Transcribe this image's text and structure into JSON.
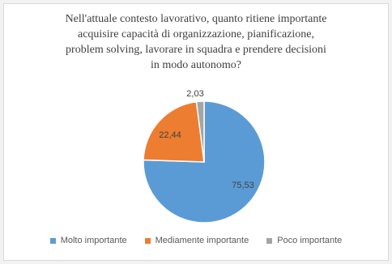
{
  "chart_data": {
    "type": "pie",
    "title_lines": [
      "Nell'attuale contesto lavorativo, quanto ritiene importante",
      "acquisire capacità di organizzazione, pianificazione,",
      "problem solving, lavorare in squadra e prendere decisioni",
      "in modo autonomo?"
    ],
    "categories": [
      "Molto importante",
      "Mediamente importante",
      "Poco importante"
    ],
    "values": [
      75.53,
      22.44,
      2.03
    ],
    "data_labels": [
      "75,53",
      "22,44",
      "2,03"
    ],
    "colors": [
      "#5b9bd5",
      "#ed7d31",
      "#a5a5a5"
    ],
    "legend_position": "bottom"
  }
}
